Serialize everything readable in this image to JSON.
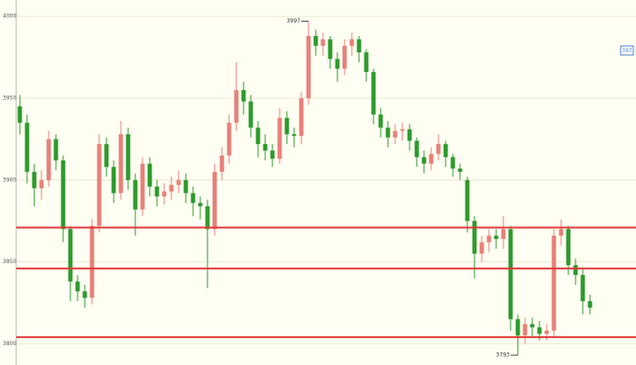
{
  "chart_data": {
    "type": "candlestick",
    "ylim": [
      3787,
      4010
    ],
    "yticks": [
      3800,
      3850,
      3900,
      3950,
      4000
    ],
    "grid": true,
    "up_color": "#e8807a",
    "down_color": "#2e9a2e",
    "hlines": [
      3871,
      3846,
      3804
    ],
    "hline_color": "#e03a3a",
    "max_label": "3997",
    "min_label": "3793",
    "price_box": "397",
    "series": [
      {
        "open": [
          3945,
          3935,
          3905,
          3895,
          3900,
          3925,
          3912,
          3870,
          3838,
          3832,
          3828,
          3872,
          3922,
          3908,
          3892,
          3928,
          3900,
          3882,
          3910,
          3896,
          3890,
          3893,
          3897,
          3900,
          3892,
          3886,
          3884,
          3870,
          3905,
          3915,
          3935,
          3955,
          3948,
          3932,
          3922,
          3918,
          3913,
          3938,
          3928,
          3927,
          3950,
          3988,
          3982,
          3986,
          3974,
          3968,
          3982,
          3986,
          3978,
          3966,
          3940,
          3932,
          3926,
          3930,
          3931,
          3924,
          3914,
          3910,
          3916,
          3922,
          3914,
          3907,
          3900,
          3875,
          3855,
          3862,
          3866,
          3864,
          3870,
          3815,
          3805,
          3812,
          3810,
          3806,
          3808,
          3866,
          3870,
          3848,
          3842,
          3826
        ],
        "high": [
          3952,
          3940,
          3910,
          3906,
          3930,
          3928,
          3915,
          3872,
          3842,
          3836,
          3876,
          3928,
          3926,
          3912,
          3936,
          3932,
          3904,
          3914,
          3914,
          3900,
          3898,
          3902,
          3906,
          3904,
          3896,
          3890,
          3888,
          3910,
          3920,
          3940,
          3972,
          3960,
          3952,
          3936,
          3928,
          3922,
          3944,
          3942,
          3932,
          3954,
          3997,
          3992,
          3990,
          3988,
          3978,
          3986,
          3990,
          3988,
          3980,
          3968,
          3944,
          3936,
          3934,
          3935,
          3934,
          3926,
          3918,
          3920,
          3928,
          3924,
          3916,
          3910,
          3902,
          3878,
          3866,
          3870,
          3870,
          3878,
          3872,
          3818,
          3816,
          3816,
          3814,
          3812,
          3870,
          3876,
          3872,
          3852,
          3846,
          3830
        ],
        "low": [
          3928,
          3898,
          3884,
          3888,
          3896,
          3906,
          3862,
          3826,
          3826,
          3822,
          3824,
          3868,
          3902,
          3886,
          3888,
          3894,
          3866,
          3878,
          3890,
          3884,
          3885,
          3888,
          3892,
          3886,
          3878,
          3876,
          3834,
          3866,
          3900,
          3910,
          3930,
          3940,
          3926,
          3914,
          3912,
          3908,
          3910,
          3922,
          3920,
          3922,
          3946,
          3976,
          3976,
          3968,
          3960,
          3964,
          3976,
          3972,
          3960,
          3934,
          3926,
          3920,
          3922,
          3924,
          3918,
          3908,
          3904,
          3906,
          3912,
          3908,
          3902,
          3900,
          3868,
          3840,
          3850,
          3856,
          3858,
          3858,
          3808,
          3793,
          3800,
          3804,
          3802,
          3802,
          3804,
          3860,
          3842,
          3836,
          3818,
          3818
        ],
        "close": [
          3935,
          3905,
          3895,
          3900,
          3925,
          3912,
          3870,
          3838,
          3832,
          3828,
          3872,
          3922,
          3908,
          3892,
          3928,
          3900,
          3882,
          3910,
          3896,
          3890,
          3893,
          3897,
          3900,
          3892,
          3886,
          3884,
          3870,
          3905,
          3915,
          3935,
          3955,
          3948,
          3932,
          3922,
          3918,
          3913,
          3938,
          3928,
          3927,
          3950,
          3988,
          3982,
          3986,
          3974,
          3968,
          3982,
          3986,
          3978,
          3966,
          3940,
          3932,
          3926,
          3930,
          3931,
          3924,
          3914,
          3910,
          3916,
          3922,
          3914,
          3907,
          3905,
          3875,
          3855,
          3862,
          3866,
          3864,
          3870,
          3815,
          3805,
          3812,
          3810,
          3806,
          3808,
          3866,
          3870,
          3848,
          3842,
          3826,
          3822
        ]
      }
    ]
  }
}
